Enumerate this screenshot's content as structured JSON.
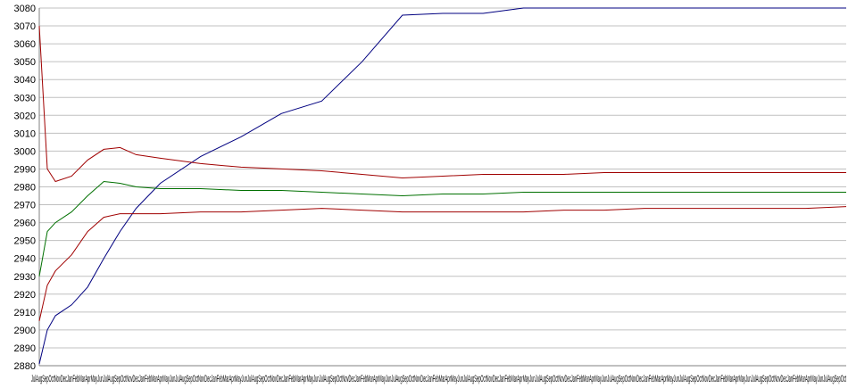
{
  "chart_data": {
    "type": "line",
    "title": "",
    "xlabel": "",
    "ylabel": "",
    "ylim": [
      2880,
      3080
    ],
    "yticks": [
      2880,
      2890,
      2900,
      2910,
      2920,
      2930,
      2940,
      2950,
      2960,
      2970,
      2980,
      2990,
      3000,
      3010,
      3020,
      3030,
      3040,
      3050,
      3060,
      3070,
      3080
    ],
    "x_tick_labels": "JulAugSepOctNovDecJanFebMarAprMayJunJulAugSepOctNovDecJanFebMarAprMayJunJulAugSepOctNovDecJanFebMarAprMayJunJulAugSepOctNovDecJanFebMarAprMayJunJulAugSepOctNovDecJanFebMarAprMayJunJulAugSepOctNovDecJanFebMarAprMayJunJulAugSepOctNovDecJanFebMarAprMayJunJulAugSepOctNovDecJanFebMarAprMayJunJulAugSepOctNovDecJanFebMarAprMayJunJulAugSepOctNovDecJanFebMarAprMayJunJulAugSepOctNovDecJanFebMarAprMayJunJulAugSepOct",
    "x": [
      0,
      1,
      2,
      4,
      6,
      8,
      10,
      12,
      15,
      20,
      25,
      30,
      35,
      40,
      45,
      50,
      55,
      60,
      65,
      70,
      75,
      80,
      85,
      90,
      95,
      100
    ],
    "grid": true,
    "series": [
      {
        "color": "#000080",
        "values": [
          2881,
          2900,
          2908,
          2914,
          2924,
          2940,
          2955,
          2968,
          2982,
          2997,
          3008,
          3021,
          3028,
          3050,
          3076,
          3077,
          3077,
          3080,
          3080,
          3080,
          3080,
          3080,
          3080,
          3080,
          3080,
          3080
        ]
      },
      {
        "color": "#a00000",
        "values": [
          3070,
          2990,
          2983,
          2986,
          2995,
          3001,
          3002,
          2998,
          2996,
          2993,
          2991,
          2990,
          2989,
          2987,
          2985,
          2986,
          2987,
          2987,
          2987,
          2988,
          2988,
          2988,
          2988,
          2988,
          2988,
          2988
        ]
      },
      {
        "color": "#007000",
        "values": [
          2930,
          2955,
          2960,
          2966,
          2975,
          2983,
          2982,
          2980,
          2979,
          2979,
          2978,
          2978,
          2977,
          2976,
          2975,
          2976,
          2976,
          2977,
          2977,
          2977,
          2977,
          2977,
          2977,
          2977,
          2977,
          2977
        ]
      },
      {
        "color": "#a00000",
        "values": [
          2905,
          2925,
          2933,
          2942,
          2955,
          2963,
          2965,
          2965,
          2965,
          2966,
          2966,
          2967,
          2968,
          2967,
          2966,
          2966,
          2966,
          2966,
          2967,
          2967,
          2968,
          2968,
          2968,
          2968,
          2968,
          2969
        ]
      }
    ]
  }
}
